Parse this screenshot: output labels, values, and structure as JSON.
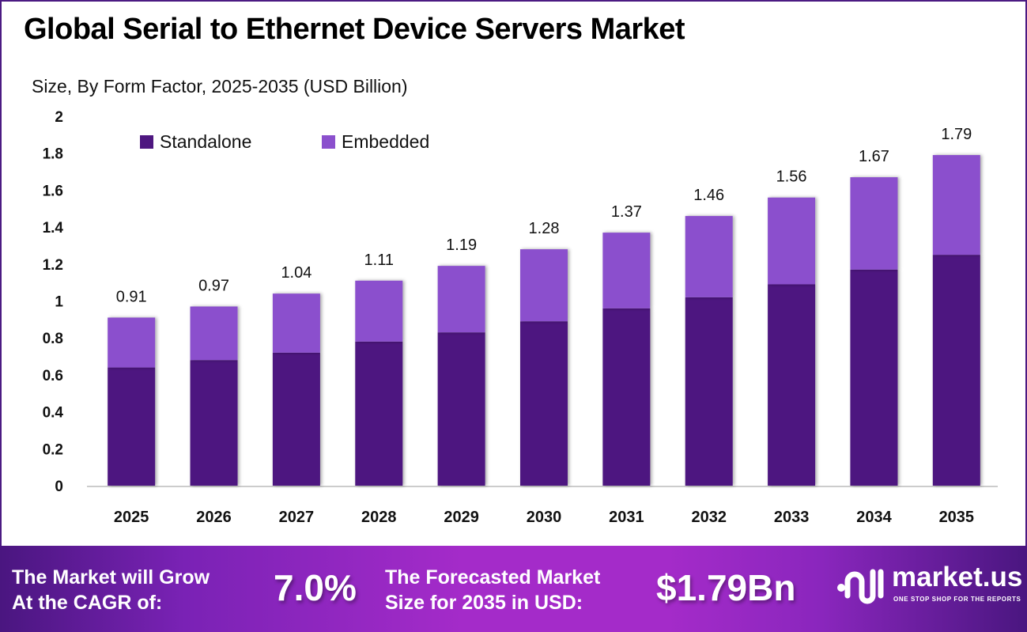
{
  "chart_data": {
    "type": "bar",
    "stacked": true,
    "title": "Global Serial to Ethernet Device Servers Market",
    "subtitle": "Size, By Form Factor, 2025-2035 (USD Billion)",
    "xlabel": "",
    "ylabel": "",
    "ylim": [
      0,
      2
    ],
    "yticks": [
      "0",
      "0.2",
      "0.4",
      "0.6",
      "0.8",
      "1",
      "1.2",
      "1.4",
      "1.6",
      "1.8",
      "2"
    ],
    "grid": false,
    "legend_position": "top-left",
    "categories": [
      "2025",
      "2026",
      "2027",
      "2028",
      "2029",
      "2030",
      "2031",
      "2032",
      "2033",
      "2034",
      "2035"
    ],
    "series": [
      {
        "name": "Standalone",
        "color": "#4e1780",
        "values": [
          0.64,
          0.68,
          0.72,
          0.78,
          0.83,
          0.89,
          0.96,
          1.02,
          1.09,
          1.17,
          1.25
        ]
      },
      {
        "name": "Embedded",
        "color": "#8b50cd",
        "values": [
          0.27,
          0.29,
          0.32,
          0.33,
          0.36,
          0.39,
          0.41,
          0.44,
          0.47,
          0.5,
          0.54
        ]
      }
    ],
    "totals": [
      0.91,
      0.97,
      1.04,
      1.11,
      1.19,
      1.28,
      1.37,
      1.46,
      1.56,
      1.67,
      1.79
    ],
    "total_labels": [
      "0.91",
      "0.97",
      "1.04",
      "1.11",
      "1.19",
      "1.28",
      "1.37",
      "1.46",
      "1.56",
      "1.67",
      "1.79"
    ]
  },
  "footer": {
    "cagr_label_line1": "The Market will Grow",
    "cagr_label_line2": "At the CAGR of:",
    "cagr_value": "7.0%",
    "forecast_label_line1": "The Forecasted Market",
    "forecast_label_line2": "Size for 2035 in USD:",
    "forecast_value": "$1.79Bn",
    "brand_name": "market.us",
    "brand_tagline": "ONE STOP SHOP FOR THE REPORTS"
  }
}
